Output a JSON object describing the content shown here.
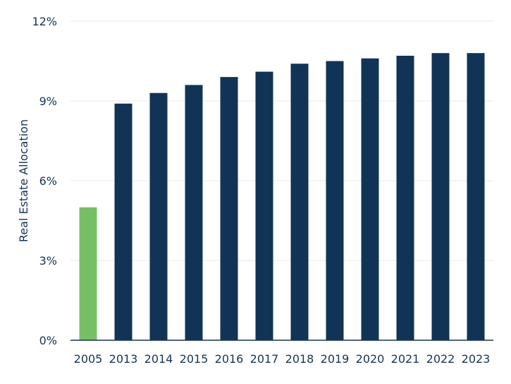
{
  "chart_data": {
    "type": "bar",
    "title": "",
    "xlabel": "",
    "ylabel": "Real Estate Allocation",
    "categories": [
      "2005",
      "2013",
      "2014",
      "2015",
      "2016",
      "2017",
      "2018",
      "2019",
      "2020",
      "2021",
      "2022",
      "2023"
    ],
    "values": [
      5.0,
      8.9,
      9.3,
      9.6,
      9.9,
      10.1,
      10.4,
      10.5,
      10.6,
      10.7,
      10.8,
      10.8
    ],
    "ylim": [
      0,
      12
    ],
    "yticks": [
      0,
      3,
      6,
      9,
      12
    ],
    "ytick_labels": [
      "0%",
      "3%",
      "6%",
      "9%",
      "12%"
    ],
    "grid": true,
    "colors": {
      "highlight": "#76bf67",
      "bar": "#113456",
      "text": "#15345a",
      "grid": "#e8e8e8",
      "axis": "#15345a"
    },
    "highlight_index": 0
  }
}
